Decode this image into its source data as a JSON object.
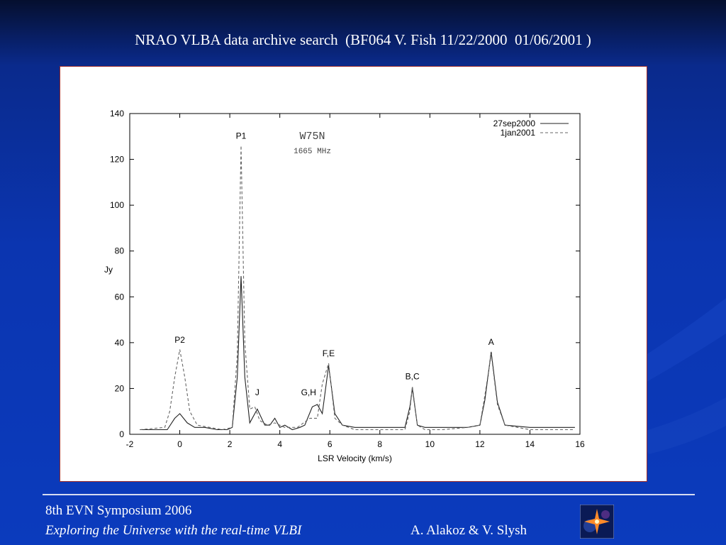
{
  "slide": {
    "title": "NRAO VLBA data archive search  (BF064 V. Fish 11/22/2000  01/06/2001 )",
    "footer_event": "8th EVN Symposium 2006",
    "footer_subtitle": "Exploring the Universe with the real-time VLBI",
    "footer_authors": "A. Alakoz & V. Slysh"
  },
  "colors": {
    "background": "#0b35b0",
    "panel": "#ffffff",
    "panel_border": "#9a2b2b"
  },
  "chart_data": {
    "type": "line",
    "title": "W75N",
    "subtitle": "1665 MHz",
    "xlabel": "LSR Velocity (km/s)",
    "ylabel": "Jy",
    "xlim": [
      -2,
      16
    ],
    "ylim": [
      0,
      140
    ],
    "xticks": [
      -2,
      0,
      2,
      4,
      6,
      8,
      10,
      12,
      14,
      16
    ],
    "yticks": [
      0,
      20,
      40,
      60,
      80,
      100,
      120,
      140
    ],
    "grid": false,
    "legend": "top-right",
    "series": [
      {
        "name": "27sep2000",
        "style": "solid",
        "x": [
          -1.6,
          -0.5,
          -0.2,
          0.0,
          0.3,
          0.6,
          1.0,
          1.5,
          1.9,
          2.1,
          2.3,
          2.45,
          2.6,
          2.8,
          3.1,
          3.4,
          3.6,
          3.8,
          4.0,
          4.2,
          4.5,
          4.8,
          5.0,
          5.3,
          5.5,
          5.7,
          5.95,
          6.2,
          6.5,
          7.0,
          8.0,
          9.0,
          9.2,
          9.3,
          9.5,
          9.8,
          10.5,
          11.5,
          12.0,
          12.2,
          12.45,
          12.7,
          13.0,
          14.0,
          15.0,
          15.8
        ],
        "y": [
          2,
          2,
          7,
          9,
          5,
          3,
          3,
          2,
          2,
          3,
          25,
          69,
          25,
          5,
          11,
          4,
          4,
          7,
          3,
          4,
          2,
          3,
          4,
          12,
          13,
          9,
          30,
          9,
          4,
          3,
          3,
          3,
          12,
          20,
          4,
          3,
          3,
          3,
          4,
          15,
          36,
          14,
          4,
          3,
          3,
          3
        ]
      },
      {
        "name": "1jan2001",
        "style": "dashed",
        "x": [
          -1.6,
          -0.6,
          -0.4,
          -0.2,
          0.0,
          0.2,
          0.4,
          0.7,
          1.2,
          1.7,
          2.1,
          2.3,
          2.45,
          2.6,
          2.8,
          3.0,
          3.2,
          3.5,
          3.8,
          4.2,
          4.7,
          5.2,
          5.5,
          5.7,
          5.95,
          6.2,
          6.5,
          7.0,
          8.0,
          9.0,
          9.2,
          9.3,
          9.5,
          9.8,
          10.5,
          11.5,
          12.0,
          12.2,
          12.45,
          12.7,
          13.0,
          14.0,
          15.0,
          15.8
        ],
        "y": [
          2,
          3,
          10,
          25,
          37,
          25,
          10,
          4,
          3,
          2,
          3,
          35,
          126,
          40,
          11,
          12,
          6,
          4,
          5,
          3,
          3,
          7,
          7,
          22,
          31,
          7,
          4,
          2,
          2,
          2,
          10,
          21,
          4,
          2,
          2,
          3,
          4,
          17,
          35,
          13,
          4,
          2,
          2,
          2
        ]
      }
    ],
    "annotations": [
      {
        "label": "P2",
        "x": 0.0,
        "y": 40
      },
      {
        "label": "P1",
        "x": 2.45,
        "y": 129
      },
      {
        "label": "J",
        "x": 3.1,
        "y": 17
      },
      {
        "label": "G,H",
        "x": 5.15,
        "y": 17
      },
      {
        "label": "F,E",
        "x": 5.95,
        "y": 34
      },
      {
        "label": "B,C",
        "x": 9.3,
        "y": 24
      },
      {
        "label": "A",
        "x": 12.45,
        "y": 39
      }
    ]
  }
}
